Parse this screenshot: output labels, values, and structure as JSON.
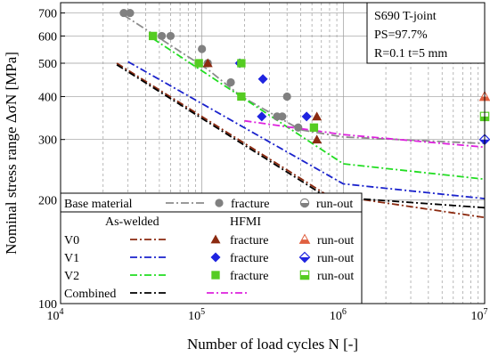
{
  "chart_data": {
    "type": "scatter",
    "xlabel": "Number of load cycles N [-]",
    "ylabel": "Nominal stress range ΔσN [MPa]",
    "x_scale": "log",
    "y_scale": "log",
    "xlim": [
      10000,
      10000000
    ],
    "ylim": [
      100,
      750
    ],
    "grid": true,
    "x_ticks": [
      {
        "v": 10000,
        "base": "10",
        "exp": "4"
      },
      {
        "v": 100000,
        "base": "10",
        "exp": "5"
      },
      {
        "v": 1000000,
        "base": "10",
        "exp": "6"
      },
      {
        "v": 10000000,
        "base": "10",
        "exp": "7"
      }
    ],
    "y_ticks": [
      {
        "v": 100,
        "label": "100"
      },
      {
        "v": 200,
        "label": "200"
      },
      {
        "v": 300,
        "label": "300"
      },
      {
        "v": 400,
        "label": "400"
      },
      {
        "v": 500,
        "label": "500"
      },
      {
        "v": 600,
        "label": "600"
      },
      {
        "v": 700,
        "label": "700"
      }
    ],
    "info_box": [
      "S690  T-joint",
      "PS=97.7%",
      "R=0.1  t=5 mm"
    ],
    "curves": [
      {
        "name": "Base material",
        "color": "#8c8c8c",
        "dash": "9 3 2 3",
        "points": [
          [
            28000,
            690
          ],
          [
            110000,
            480
          ],
          [
            190000,
            400
          ],
          [
            500000,
            320
          ],
          [
            1000000,
            305
          ],
          [
            10000000,
            292
          ]
        ]
      },
      {
        "name": "V0",
        "color": "#8b2a10",
        "dash": "8 3 2 3",
        "points": [
          [
            25000,
            500
          ],
          [
            750000,
            208
          ],
          [
            10000000,
            178
          ]
        ]
      },
      {
        "name": "V1",
        "color": "#1a22cc",
        "dash": "8 3 2 3",
        "points": [
          [
            30000,
            505
          ],
          [
            1000000,
            223
          ],
          [
            10000000,
            202
          ]
        ]
      },
      {
        "name": "V2",
        "color": "#22dd22",
        "dash": "8 3 2 3",
        "points": [
          [
            45000,
            590
          ],
          [
            1000000,
            255
          ],
          [
            10000000,
            230
          ]
        ]
      },
      {
        "name": "Combined",
        "color": "#000000",
        "dash": "8 3 2 3",
        "points": [
          [
            25000,
            495
          ],
          [
            750000,
            205
          ],
          [
            10000000,
            190
          ]
        ]
      },
      {
        "name": "HFMI combined",
        "color": "#dd22dd",
        "dash": "8 3 2 3",
        "points": [
          [
            200000,
            340
          ],
          [
            1000000,
            310
          ],
          [
            10000000,
            285
          ]
        ]
      }
    ],
    "series": [
      {
        "name": "Base material fracture",
        "marker": "circle",
        "color": "#808080",
        "points": [
          [
            28000,
            700
          ],
          [
            31000,
            700
          ],
          [
            52000,
            600
          ],
          [
            60000,
            600
          ],
          [
            100000,
            550
          ],
          [
            110000,
            500
          ],
          [
            160000,
            440
          ],
          [
            340000,
            350
          ],
          [
            370000,
            350
          ],
          [
            400000,
            400
          ],
          [
            480000,
            325
          ]
        ]
      },
      {
        "name": "V0 fracture",
        "marker": "triangle",
        "color": "#8b2a10",
        "points": [
          [
            110000,
            500
          ],
          [
            650000,
            350
          ],
          [
            650000,
            300
          ]
        ]
      },
      {
        "name": "V0 run-out",
        "marker": "triangle-half",
        "color": "#e06040",
        "points": [
          [
            10000000,
            400
          ]
        ]
      },
      {
        "name": "V1 fracture",
        "marker": "diamond",
        "color": "#1f24e0",
        "points": [
          [
            185000,
            500
          ],
          [
            265000,
            350
          ],
          [
            270000,
            450
          ],
          [
            550000,
            350
          ]
        ]
      },
      {
        "name": "V1 run-out",
        "marker": "diamond-half",
        "color": "#1f24e0",
        "points": [
          [
            10000000,
            300
          ]
        ]
      },
      {
        "name": "V2 fracture",
        "marker": "square",
        "color": "#55cc22",
        "points": [
          [
            45000,
            600
          ],
          [
            95000,
            500
          ],
          [
            190000,
            500
          ],
          [
            190000,
            400
          ],
          [
            620000,
            325
          ]
        ]
      },
      {
        "name": "V2 run-out",
        "marker": "square-half",
        "color": "#55cc22",
        "points": [
          [
            10000000,
            350
          ]
        ]
      }
    ],
    "legend": {
      "base_label": "Base material",
      "as_welded_header": "As-welded",
      "hfmi_header": "HFMI",
      "fracture": "fracture",
      "run_out": "run-out",
      "rows": [
        "V0",
        "V1",
        "V2",
        "Combined"
      ]
    }
  }
}
